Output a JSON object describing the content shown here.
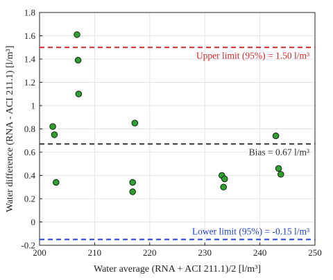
{
  "chart_data": {
    "type": "scatter",
    "title": "",
    "xlabel": "Water average (RNA + ACI 211.1)/2 [l/m³]",
    "ylabel": "Water difference (RNA - ACI 211.1) [l/m³]",
    "xlim": [
      200,
      250
    ],
    "ylim": [
      -0.2,
      1.8
    ],
    "x_ticks": [
      200,
      210,
      220,
      230,
      240,
      250
    ],
    "y_ticks": [
      -0.2,
      0,
      0.2,
      0.4,
      0.6,
      0.8,
      1,
      1.2,
      1.4,
      1.6,
      1.8
    ],
    "grid": true,
    "points": [
      {
        "x": 206.8,
        "y": 1.61
      },
      {
        "x": 207.0,
        "y": 1.39
      },
      {
        "x": 207.1,
        "y": 1.1
      },
      {
        "x": 202.4,
        "y": 0.82
      },
      {
        "x": 202.7,
        "y": 0.75
      },
      {
        "x": 203.0,
        "y": 0.34
      },
      {
        "x": 217.3,
        "y": 0.85
      },
      {
        "x": 216.9,
        "y": 0.34
      },
      {
        "x": 216.9,
        "y": 0.26
      },
      {
        "x": 233.1,
        "y": 0.4
      },
      {
        "x": 233.6,
        "y": 0.37
      },
      {
        "x": 233.4,
        "y": 0.3
      },
      {
        "x": 242.9,
        "y": 0.74
      },
      {
        "x": 243.4,
        "y": 0.46
      },
      {
        "x": 243.8,
        "y": 0.41
      }
    ],
    "point_color": "#2ca02c",
    "reference_lines": [
      {
        "name": "upper",
        "y": 1.5,
        "label": "Upper limit (95%) = 1.50 l/m³",
        "color": "#d62728",
        "label_position": "below-right"
      },
      {
        "name": "bias",
        "y": 0.67,
        "label": "Bias = 0.67 l/m³",
        "color": "#333333",
        "label_position": "below-right"
      },
      {
        "name": "lower",
        "y": -0.15,
        "label": "Lower limit (95%) = -0.15 l/m³",
        "color": "#1f3fd6",
        "label_position": "above-right"
      }
    ]
  }
}
